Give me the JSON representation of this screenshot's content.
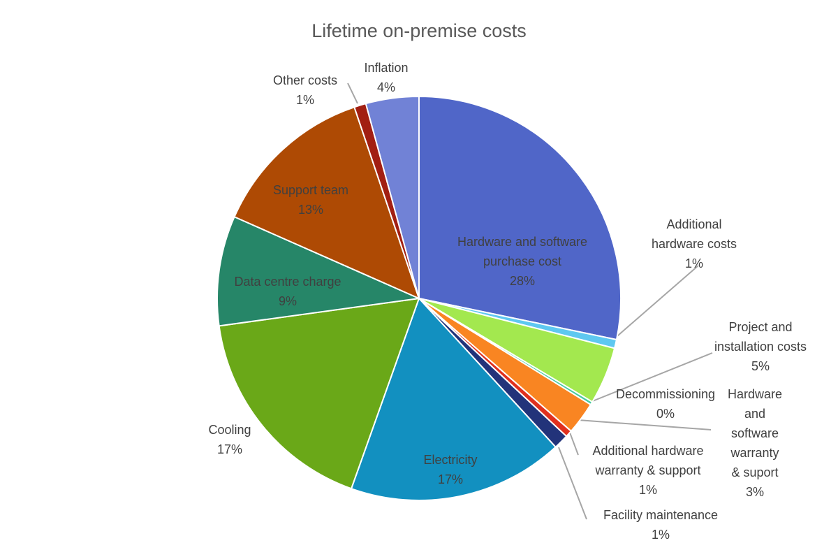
{
  "chart_data": {
    "type": "pie",
    "title": "Lifetime on-premise costs",
    "start_angle_deg": 0,
    "direction": "clockwise",
    "slices": [
      {
        "name": "Hardware and software purchase cost",
        "label_lines": [
          "Hardware and software",
          "purchase cost"
        ],
        "label": "28%",
        "value": 28.3,
        "color": "#5066C8",
        "label_inside": true
      },
      {
        "name": "Additional hardware costs",
        "label_lines": [
          "Additional",
          "hardware costs"
        ],
        "label": "1%",
        "value": 0.7,
        "color": "#5EC8F0",
        "label_inside": false
      },
      {
        "name": "Project and installation costs",
        "label_lines": [
          "Project and",
          "installation costs"
        ],
        "label": "5%",
        "value": 4.6,
        "color": "#A3E84F",
        "label_inside": false
      },
      {
        "name": "Decommissioning",
        "label_lines": [
          "Decommissioning"
        ],
        "label": "0%",
        "value": 0.25,
        "color": "#44C9A0",
        "label_inside": false
      },
      {
        "name": "Hardware and software warranty & suport",
        "label_lines": [
          "Hardware",
          "and",
          "software",
          "warranty",
          "& suport"
        ],
        "label": "3%",
        "value": 2.6,
        "color": "#F98522",
        "label_inside": false
      },
      {
        "name": "Additional hardware warranty & support",
        "label_lines": [
          "Additional hardware",
          "warranty & support"
        ],
        "label": "1%",
        "value": 0.55,
        "color": "#E0301E",
        "label_inside": false
      },
      {
        "name": "Facility maintenance",
        "label_lines": [
          "Facility maintenance"
        ],
        "label": "1%",
        "value": 1.2,
        "color": "#22337A",
        "label_inside": false
      },
      {
        "name": "Electricity",
        "label_lines": [
          "Electricity"
        ],
        "label": "17%",
        "value": 17.3,
        "color": "#1290C0",
        "label_inside": true
      },
      {
        "name": "Cooling",
        "label_lines": [
          "Cooling"
        ],
        "label": "17%",
        "value": 17.4,
        "color": "#6AA818",
        "label_inside": false
      },
      {
        "name": "Data centre charge",
        "label_lines": [
          "Data centre charge"
        ],
        "label": "9%",
        "value": 8.8,
        "color": "#268668",
        "label_inside": true
      },
      {
        "name": "Support team",
        "label_lines": [
          "Support team"
        ],
        "label": "13%",
        "value": 13.2,
        "color": "#AE4A04",
        "label_inside": true
      },
      {
        "name": "Other costs",
        "label_lines": [
          "Other costs"
        ],
        "label": "1%",
        "value": 0.95,
        "color": "#A21F12",
        "label_inside": false
      },
      {
        "name": "Inflation",
        "label_lines": [
          "Inflation"
        ],
        "label": "4%",
        "value": 4.25,
        "color": "#7182D6",
        "label_inside": false
      }
    ]
  }
}
